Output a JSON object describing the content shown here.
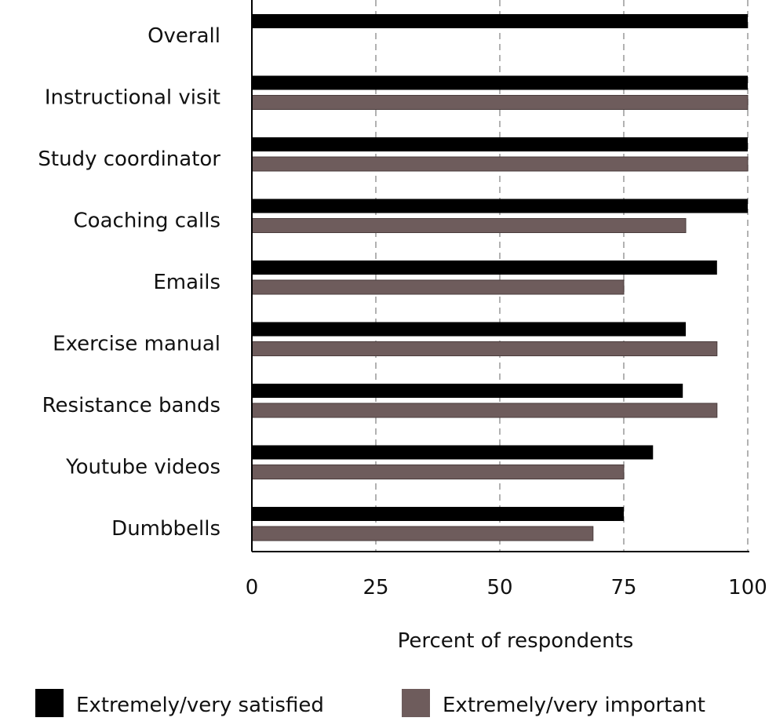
{
  "chart_data": {
    "type": "bar",
    "orientation": "horizontal",
    "categories": [
      "Overall",
      "Instructional visit",
      "Study coordinator",
      "Coaching calls",
      "Emails",
      "Exercise manual",
      "Resistance bands",
      "Youtube videos",
      "Dumbbells"
    ],
    "series": [
      {
        "name": "Extremely/very satisfied",
        "color": "#000000",
        "values": [
          100,
          100,
          100,
          100,
          93.8,
          87.5,
          86.9,
          80.9,
          75
        ]
      },
      {
        "name": "Extremely/very important",
        "color": "#6e5c5c",
        "values": [
          null,
          100,
          100,
          87.5,
          75,
          93.8,
          93.8,
          75,
          68.8
        ]
      }
    ],
    "xlabel": "Percent of respondents",
    "xlim": [
      0,
      100
    ],
    "xticks": [
      "0",
      "25",
      "50",
      "75",
      "100"
    ],
    "grid": "vertical dashed",
    "legend": "bottom"
  }
}
